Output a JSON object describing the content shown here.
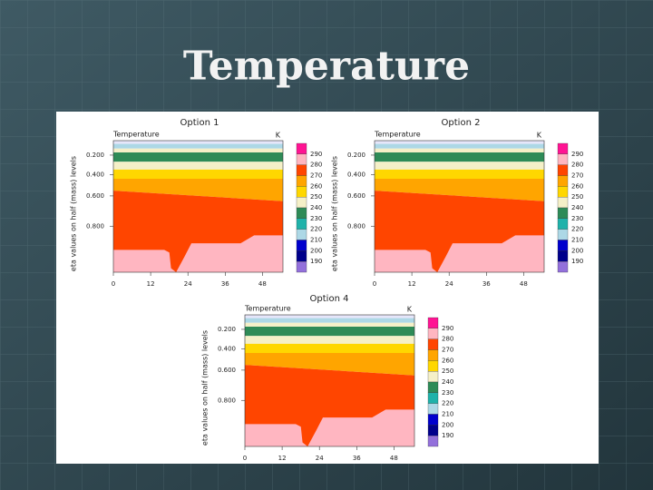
{
  "slide": {
    "title": "Temperature"
  },
  "panels": [
    {
      "title": "Option 1",
      "subtitle": "Temperature",
      "unit": "K",
      "ylabel": "eta values on half (mass) levels",
      "yticks": [
        "0.200",
        "0.400",
        "0.600",
        "0.800"
      ],
      "xticks": [
        "0",
        "12",
        "24",
        "36",
        "48"
      ],
      "colorbar": {
        "labels": [
          290,
          280,
          270,
          260,
          250,
          240,
          230,
          220,
          210,
          200,
          190
        ],
        "colors": [
          "#ff1493",
          "#ffb6c1",
          "#ff4500",
          "#ffa500",
          "#ffd700",
          "#f5f0c8",
          "#2e8b57",
          "#20b2aa",
          "#add8e6",
          "#0000cd",
          "#00008b",
          "#9370db"
        ]
      }
    },
    {
      "title": "Option 2",
      "subtitle": "Temperature",
      "unit": "K",
      "ylabel": "eta values on half (mass) levels",
      "yticks": [
        "0.200",
        "0.400",
        "0.600",
        "0.800"
      ],
      "xticks": [
        "0",
        "12",
        "24",
        "36",
        "48"
      ],
      "colorbar": {
        "labels": [
          290,
          280,
          270,
          260,
          250,
          240,
          230,
          220,
          210,
          200,
          190
        ],
        "colors": [
          "#ff1493",
          "#ffb6c1",
          "#ff4500",
          "#ffa500",
          "#ffd700",
          "#f5f0c8",
          "#2e8b57",
          "#20b2aa",
          "#add8e6",
          "#0000cd",
          "#00008b",
          "#9370db"
        ]
      }
    },
    {
      "title": "Option 4",
      "subtitle": "Temperature",
      "unit": "K",
      "ylabel": "eta values on half (mass) levels",
      "yticks": [
        "0.200",
        "0.400",
        "0.600",
        "0.800"
      ],
      "xticks": [
        "0",
        "12",
        "24",
        "36",
        "48"
      ],
      "colorbar": {
        "labels": [
          290,
          280,
          270,
          260,
          250,
          240,
          230,
          220,
          210,
          200,
          190
        ],
        "colors": [
          "#ff1493",
          "#ffb6c1",
          "#ff4500",
          "#ffa500",
          "#ffd700",
          "#f5f0c8",
          "#2e8b57",
          "#20b2aa",
          "#add8e6",
          "#0000cd",
          "#00008b",
          "#9370db"
        ]
      }
    }
  ]
}
